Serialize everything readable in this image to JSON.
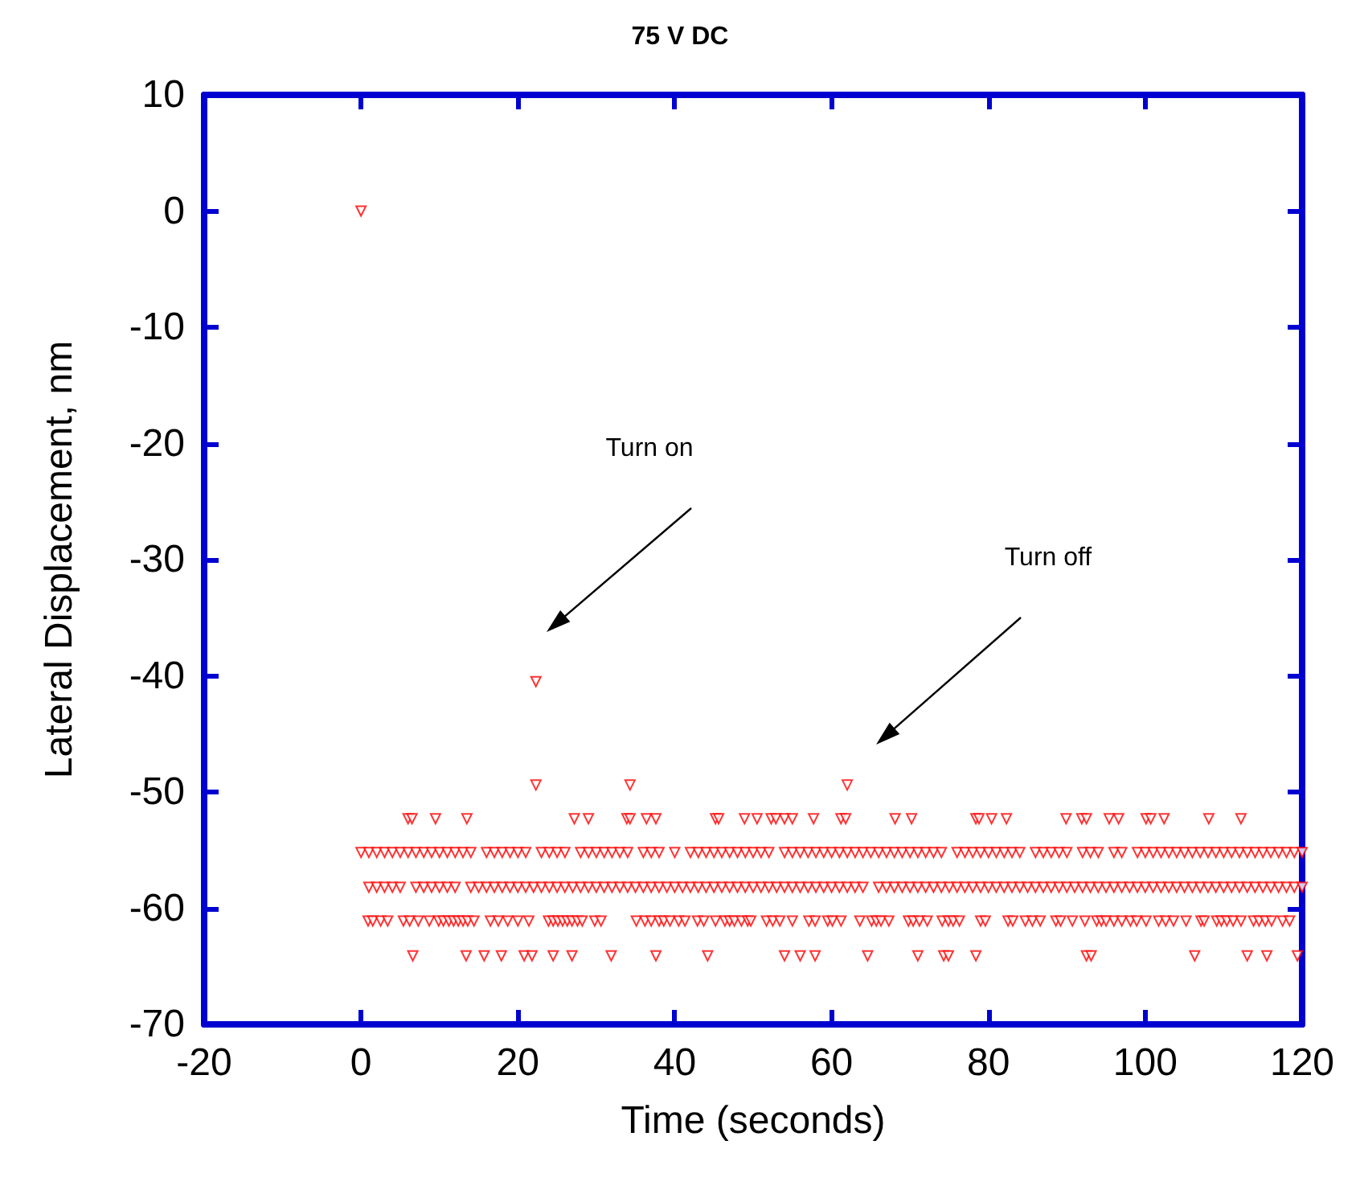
{
  "chart_data": {
    "type": "scatter",
    "title": "75 V DC",
    "xlabel": "Time (seconds)",
    "ylabel": "Lateral Displacement, nm",
    "xlim": [
      -20,
      120
    ],
    "xticks": [
      -20,
      0,
      20,
      40,
      60,
      80,
      100,
      120
    ],
    "ylim": [
      -70,
      10
    ],
    "yticks": [
      -70,
      -60,
      -50,
      -40,
      -30,
      -20,
      -10,
      0,
      10
    ],
    "grid": false,
    "marker": "triangle",
    "annotations": [
      "Turn on",
      "Turn off"
    ],
    "series": [
      {
        "color": "#ff0000",
        "x": [
          0,
          22.3,
          22.3,
          34.3,
          62.0
        ],
        "values": [
          0,
          -40.5,
          -49.4,
          -49.4,
          -49.4
        ]
      },
      {
        "color": "#ff0000",
        "x": [
          6.0,
          6.5,
          9.5,
          13.5,
          27.2,
          29.0,
          33.9,
          34.3,
          36.4,
          37.6,
          45.2,
          45.6,
          48.9,
          50.5,
          52.3,
          52.9,
          54.0,
          55.0,
          57.7,
          61.2,
          61.8,
          68.1,
          70.2,
          78.4,
          78.8,
          80.4,
          82.3,
          89.9,
          91.9,
          92.5,
          95.4,
          96.6,
          100.1,
          100.7,
          102.4,
          108.1,
          112.2
        ],
        "values": [
          -52.3,
          -52.3,
          -52.3,
          -52.3,
          -52.3,
          -52.3,
          -52.3,
          -52.3,
          -52.3,
          -52.3,
          -52.3,
          -52.3,
          -52.3,
          -52.3,
          -52.3,
          -52.3,
          -52.3,
          -52.3,
          -52.3,
          -52.3,
          -52.3,
          -52.3,
          -52.3,
          -52.3,
          -52.3,
          -52.3,
          -52.3,
          -52.3,
          -52.3,
          -52.3,
          -52.3,
          -52.3,
          -52.3,
          -52.3,
          -52.3,
          -52.3,
          -52.3
        ]
      },
      {
        "color": "#ff0000",
        "x": [
          0,
          1,
          2,
          3,
          4,
          5,
          6,
          7,
          8,
          9,
          10,
          11,
          12,
          13,
          14,
          16,
          17,
          18,
          19,
          20,
          21,
          23,
          24,
          25,
          26,
          28,
          29,
          30,
          31,
          32,
          33,
          34,
          36,
          37,
          38,
          40,
          42,
          43,
          44,
          45,
          46,
          47,
          48,
          49,
          50,
          51,
          52,
          54,
          55,
          56,
          57,
          58,
          59,
          60,
          61,
          62,
          63,
          64,
          65,
          66,
          67,
          68,
          69,
          70,
          71,
          72,
          73,
          74,
          76,
          77,
          78,
          79,
          80,
          81,
          82,
          83,
          84,
          86,
          87,
          88,
          89,
          90,
          92,
          93,
          94,
          96,
          97,
          99,
          100,
          101,
          102,
          103,
          104,
          105,
          106,
          107,
          108,
          109,
          110,
          111,
          112,
          113,
          114,
          115,
          116,
          117,
          118,
          119,
          120
        ],
        "values": [
          -55.2,
          -55.2,
          -55.2,
          -55.2,
          -55.2,
          -55.2,
          -55.2,
          -55.2,
          -55.2,
          -55.2,
          -55.2,
          -55.2,
          -55.2,
          -55.2,
          -55.2,
          -55.2,
          -55.2,
          -55.2,
          -55.2,
          -55.2,
          -55.2,
          -55.2,
          -55.2,
          -55.2,
          -55.2,
          -55.2,
          -55.2,
          -55.2,
          -55.2,
          -55.2,
          -55.2,
          -55.2,
          -55.2,
          -55.2,
          -55.2,
          -55.2,
          -55.2,
          -55.2,
          -55.2,
          -55.2,
          -55.2,
          -55.2,
          -55.2,
          -55.2,
          -55.2,
          -55.2,
          -55.2,
          -55.2,
          -55.2,
          -55.2,
          -55.2,
          -55.2,
          -55.2,
          -55.2,
          -55.2,
          -55.2,
          -55.2,
          -55.2,
          -55.2,
          -55.2,
          -55.2,
          -55.2,
          -55.2,
          -55.2,
          -55.2,
          -55.2,
          -55.2,
          -55.2,
          -55.2,
          -55.2,
          -55.2,
          -55.2,
          -55.2,
          -55.2,
          -55.2,
          -55.2,
          -55.2,
          -55.2,
          -55.2,
          -55.2,
          -55.2,
          -55.2,
          -55.2,
          -55.2,
          -55.2,
          -55.2,
          -55.2,
          -55.2,
          -55.2,
          -55.2,
          -55.2,
          -55.2,
          -55.2,
          -55.2,
          -55.2,
          -55.2,
          -55.2,
          -55.2,
          -55.2,
          -55.2,
          -55.2,
          -55.2,
          -55.2,
          -55.2,
          -55.2,
          -55.2,
          -55.2,
          -55.2,
          -55.2
        ]
      },
      {
        "color": "#ff0000",
        "x": [
          1,
          2,
          3,
          4,
          5,
          7,
          8,
          9,
          10,
          11,
          12,
          14,
          15,
          16,
          17,
          18,
          19,
          20,
          21,
          22,
          23,
          24,
          25,
          26,
          27,
          28,
          29,
          30,
          31,
          32,
          33,
          34,
          35,
          36,
          37,
          38,
          39,
          40,
          41,
          42,
          43,
          44,
          45,
          46,
          47,
          48,
          49,
          50,
          51,
          52,
          53,
          54,
          55,
          56,
          57,
          58,
          59,
          60,
          61,
          62,
          63,
          64,
          66,
          67,
          68,
          69,
          70,
          71,
          72,
          73,
          74,
          75,
          76,
          77,
          78,
          79,
          80,
          81,
          82,
          83,
          84,
          85,
          86,
          87,
          88,
          89,
          90,
          91,
          92,
          93,
          94,
          95,
          96,
          97,
          98,
          99,
          100,
          101,
          102,
          103,
          104,
          105,
          106,
          107,
          108,
          109,
          110,
          111,
          112,
          113,
          114,
          115,
          116,
          117,
          118,
          119,
          120
        ],
        "values": [
          -58.2,
          -58.2,
          -58.2,
          -58.2,
          -58.2,
          -58.2,
          -58.2,
          -58.2,
          -58.2,
          -58.2,
          -58.2,
          -58.2,
          -58.2,
          -58.2,
          -58.2,
          -58.2,
          -58.2,
          -58.2,
          -58.2,
          -58.2,
          -58.2,
          -58.2,
          -58.2,
          -58.2,
          -58.2,
          -58.2,
          -58.2,
          -58.2,
          -58.2,
          -58.2,
          -58.2,
          -58.2,
          -58.2,
          -58.2,
          -58.2,
          -58.2,
          -58.2,
          -58.2,
          -58.2,
          -58.2,
          -58.2,
          -58.2,
          -58.2,
          -58.2,
          -58.2,
          -58.2,
          -58.2,
          -58.2,
          -58.2,
          -58.2,
          -58.2,
          -58.2,
          -58.2,
          -58.2,
          -58.2,
          -58.2,
          -58.2,
          -58.2,
          -58.2,
          -58.2,
          -58.2,
          -58.2,
          -58.2,
          -58.2,
          -58.2,
          -58.2,
          -58.2,
          -58.2,
          -58.2,
          -58.2,
          -58.2,
          -58.2,
          -58.2,
          -58.2,
          -58.2,
          -58.2,
          -58.2,
          -58.2,
          -58.2,
          -58.2,
          -58.2,
          -58.2,
          -58.2,
          -58.2,
          -58.2,
          -58.2,
          -58.2,
          -58.2,
          -58.2,
          -58.2,
          -58.2,
          -58.2,
          -58.2,
          -58.2,
          -58.2,
          -58.2,
          -58.2,
          -58.2,
          -58.2,
          -58.2,
          -58.2,
          -58.2,
          -58.2,
          -58.2,
          -58.2,
          -58.2,
          -58.2,
          -58.2,
          -58.2,
          -58.2,
          -58.2,
          -58.2,
          -58.2,
          -58.2,
          -58.2,
          -58.2,
          -58.2
        ]
      },
      {
        "color": "#ff0000",
        "x": [
          0.9,
          1.5,
          2.5,
          3.4,
          5.4,
          6.2,
          7.3,
          8.7,
          9.9,
          10.5,
          11.2,
          11.8,
          12.4,
          13.0,
          13.6,
          14.4,
          16.5,
          17.5,
          18.7,
          20.0,
          21.4,
          23.9,
          24.5,
          25.1,
          25.7,
          26.3,
          26.9,
          27.6,
          28.2,
          29.8,
          30.6,
          35.1,
          36.2,
          37.0,
          38.0,
          38.6,
          39.4,
          40.5,
          41.3,
          42.9,
          43.7,
          45.2,
          46.4,
          47.0,
          47.6,
          48.5,
          49.3,
          49.7,
          51.7,
          52.5,
          53.4,
          55.0,
          57.1,
          57.9,
          59.5,
          60.1,
          61.2,
          63.6,
          65.1,
          65.7,
          66.3,
          67.3,
          69.8,
          70.4,
          71.2,
          72.2,
          74.1,
          74.9,
          75.5,
          76.3,
          79.0,
          79.6,
          82.5,
          83.1,
          84.7,
          85.6,
          86.6,
          88.6,
          89.2,
          90.7,
          92.3,
          93.8,
          94.4,
          95.0,
          96.0,
          97.0,
          98.1,
          98.9,
          100.1,
          101.7,
          102.6,
          103.6,
          105.2,
          107.1,
          107.5,
          109.1,
          109.7,
          110.4,
          111.2,
          112.2,
          113.8,
          114.5,
          115.3,
          116.1,
          117.5,
          118.4
        ],
        "values": [
          -61.1,
          -61.1,
          -61.1,
          -61.1,
          -61.1,
          -61.1,
          -61.1,
          -61.1,
          -61.1,
          -61.1,
          -61.1,
          -61.1,
          -61.1,
          -61.1,
          -61.1,
          -61.1,
          -61.1,
          -61.1,
          -61.1,
          -61.1,
          -61.1,
          -61.1,
          -61.1,
          -61.1,
          -61.1,
          -61.1,
          -61.1,
          -61.1,
          -61.1,
          -61.1,
          -61.1,
          -61.1,
          -61.1,
          -61.1,
          -61.1,
          -61.1,
          -61.1,
          -61.1,
          -61.1,
          -61.1,
          -61.1,
          -61.1,
          -61.1,
          -61.1,
          -61.1,
          -61.1,
          -61.1,
          -61.1,
          -61.1,
          -61.1,
          -61.1,
          -61.1,
          -61.1,
          -61.1,
          -61.1,
          -61.1,
          -61.1,
          -61.1,
          -61.1,
          -61.1,
          -61.1,
          -61.1,
          -61.1,
          -61.1,
          -61.1,
          -61.1,
          -61.1,
          -61.1,
          -61.1,
          -61.1,
          -61.1,
          -61.1,
          -61.1,
          -61.1,
          -61.1,
          -61.1,
          -61.1,
          -61.1,
          -61.1,
          -61.1,
          -61.1,
          -61.1,
          -61.1,
          -61.1,
          -61.1,
          -61.1,
          -61.1,
          -61.1,
          -61.1,
          -61.1,
          -61.1,
          -61.1,
          -61.1,
          -61.1,
          -61.1,
          -61.1,
          -61.1,
          -61.1,
          -61.1,
          -61.1,
          -61.1,
          -61.1,
          -61.1,
          -61.1,
          -61.1,
          -61.1
        ]
      },
      {
        "color": "#ff0000",
        "x": [
          6.6,
          13.4,
          15.7,
          17.9,
          20.8,
          21.8,
          24.5,
          26.9,
          31.9,
          37.6,
          44.2,
          54.0,
          56.0,
          57.9,
          64.6,
          71.0,
          74.3,
          74.9,
          78.4,
          92.5,
          93.1,
          106.3,
          113.0,
          115.5,
          119.4
        ],
        "values": [
          -64.1,
          -64.1,
          -64.1,
          -64.1,
          -64.1,
          -64.1,
          -64.1,
          -64.1,
          -64.1,
          -64.1,
          -64.1,
          -64.1,
          -64.1,
          -64.1,
          -64.1,
          -64.1,
          -64.1,
          -64.1,
          -64.1,
          -64.1,
          -64.1,
          -64.1,
          -64.1,
          -64.1,
          -64.1
        ]
      }
    ]
  }
}
